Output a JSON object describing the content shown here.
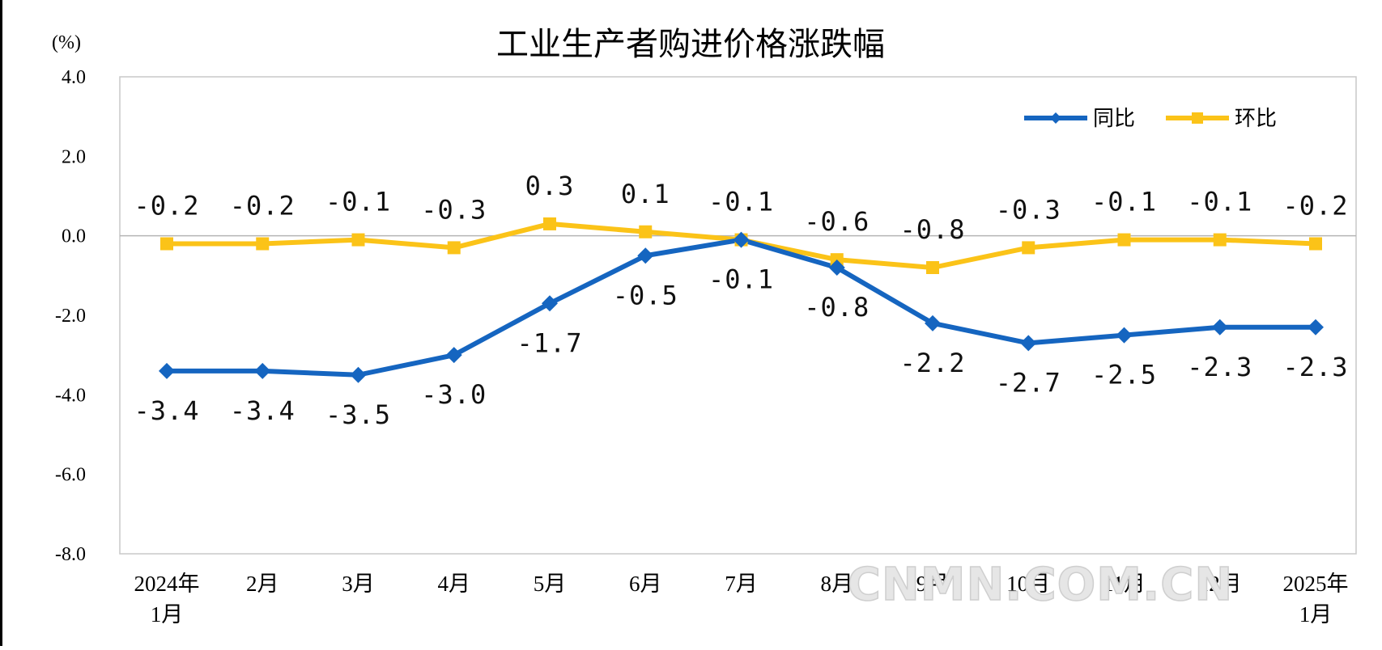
{
  "chart_data": {
    "type": "line",
    "title": "工业生产者购进价格涨跌幅",
    "unit_label": "(%)",
    "ylim": [
      -8.0,
      4.0
    ],
    "y_ticks": [
      "4.0",
      "2.0",
      "0.0",
      "-2.0",
      "-4.0",
      "-6.0",
      "-8.0"
    ],
    "y_tick_values": [
      4,
      2,
      0,
      -2,
      -4,
      -6,
      -8
    ],
    "categories": [
      [
        "2024年",
        "1月"
      ],
      [
        "2月"
      ],
      [
        "3月"
      ],
      [
        "4月"
      ],
      [
        "5月"
      ],
      [
        "6月"
      ],
      [
        "7月"
      ],
      [
        "8月"
      ],
      [
        "9月"
      ],
      [
        "10月"
      ],
      [
        "11月"
      ],
      [
        "12月"
      ],
      [
        "2025年",
        "1月"
      ]
    ],
    "grid": false,
    "zero_line": true,
    "legend_position": "top-right",
    "series": [
      {
        "name": "同比",
        "color": "#1565c0",
        "marker": "diamond",
        "label_position": "below",
        "values": [
          -3.4,
          -3.4,
          -3.5,
          -3.0,
          -1.7,
          -0.5,
          -0.1,
          -0.8,
          -2.2,
          -2.7,
          -2.5,
          -2.3,
          -2.3
        ],
        "labels": [
          "-3.4",
          "-3.4",
          "-3.5",
          "-3.0",
          "-1.7",
          "-0.5",
          "-0.1",
          "-0.8",
          "-2.2",
          "-2.7",
          "-2.5",
          "-2.3",
          "-2.3"
        ]
      },
      {
        "name": "环比",
        "color": "#fbc318",
        "marker": "square",
        "label_position": "above",
        "values": [
          -0.2,
          -0.2,
          -0.1,
          -0.3,
          0.3,
          0.1,
          -0.1,
          -0.6,
          -0.8,
          -0.3,
          -0.1,
          -0.1,
          -0.2
        ],
        "labels": [
          "-0.2",
          "-0.2",
          "-0.1",
          "-0.3",
          "0.3",
          "0.1",
          "-0.1",
          "-0.6",
          "-0.8",
          "-0.3",
          "-0.1",
          "-0.1",
          "-0.2"
        ]
      }
    ]
  },
  "watermark": "CNMN.COM.CN"
}
